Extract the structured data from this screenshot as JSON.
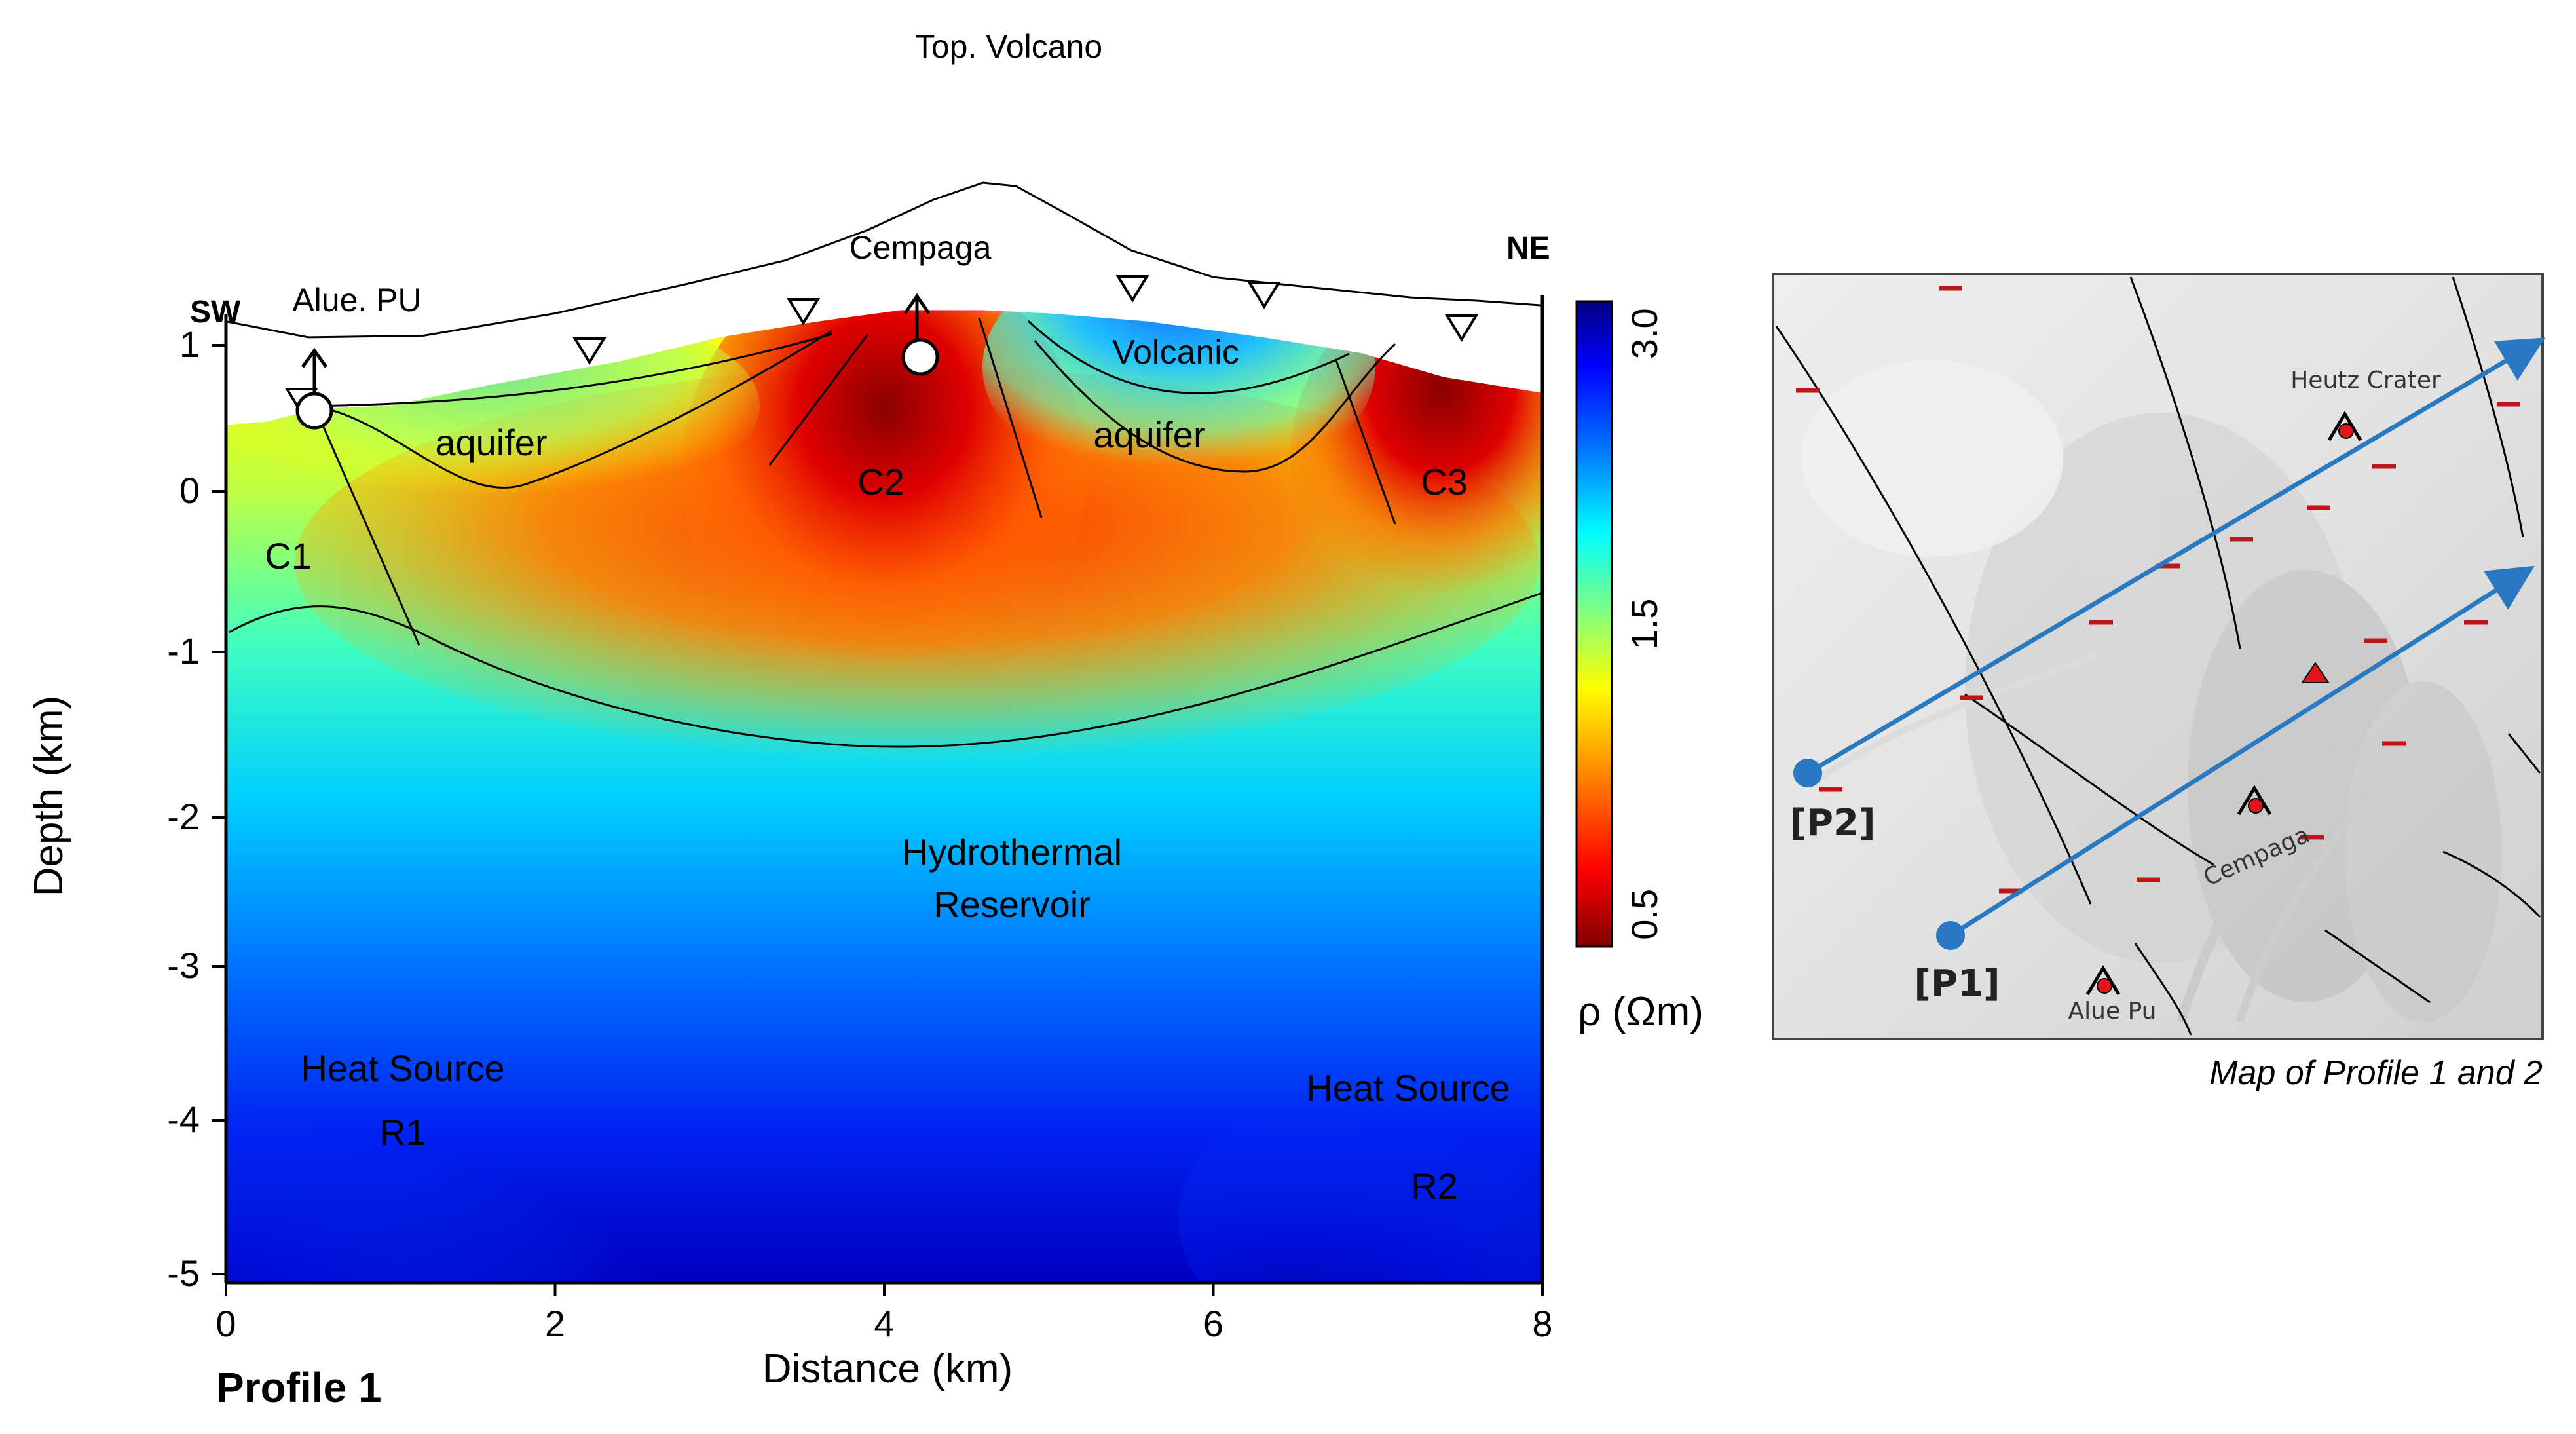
{
  "chart_data": [
    {
      "type": "heatmap",
      "title": "Top. Volcano",
      "profile_label": "Profile 1",
      "xlabel": "Distance (km)",
      "ylabel": "Depth (km)",
      "x_ticks": [
        "0",
        "2",
        "4",
        "6",
        "8"
      ],
      "y_ticks": [
        "1",
        "0",
        "-1",
        "-2",
        "-3",
        "-4",
        "-5"
      ],
      "xlim": [
        0,
        8
      ],
      "ylim": [
        -5.3,
        1.2
      ],
      "direction_left": "SW",
      "direction_right": "NE",
      "colorbar": {
        "label": "ρ (Ωm)",
        "ticks": [
          "0.5",
          "1.5",
          "3.0"
        ],
        "colormap": [
          "#7f0000",
          "#ff0000",
          "#ff8000",
          "#ffff00",
          "#80ff80",
          "#00ffff",
          "#0080ff",
          "#0000ff",
          "#00007f"
        ]
      },
      "stations": [
        {
          "name": "Alue. PU",
          "x": 0.5,
          "y": 0.5
        },
        {
          "name": "Cempaga",
          "x": 4.2,
          "y": 0.85
        }
      ],
      "station_markers_x": [
        0.2,
        1.95,
        3.25,
        5.25,
        6.05,
        7.25
      ],
      "zone_labels": {
        "c1": "C1",
        "c2": "C2",
        "c3": "C3",
        "aquifer_left": "aquifer",
        "aquifer_right": "aquifer",
        "volcanic": "Volcanic",
        "reservoir_line1": "Hydrothermal",
        "reservoir_line2": "Reservoir",
        "heat_left": "Heat Source",
        "heat_right": "Heat Source",
        "r1": "R1",
        "r2": "R2"
      }
    },
    {
      "type": "map",
      "caption": "Map of Profile 1 and 2",
      "profiles": [
        "[P1]",
        "[P2]"
      ],
      "places": [
        "Heutz Crater",
        "Cempaga",
        "Alue Pu"
      ],
      "colors": {
        "profile_line": "#2979c2",
        "marker": "#c0161b"
      }
    }
  ]
}
